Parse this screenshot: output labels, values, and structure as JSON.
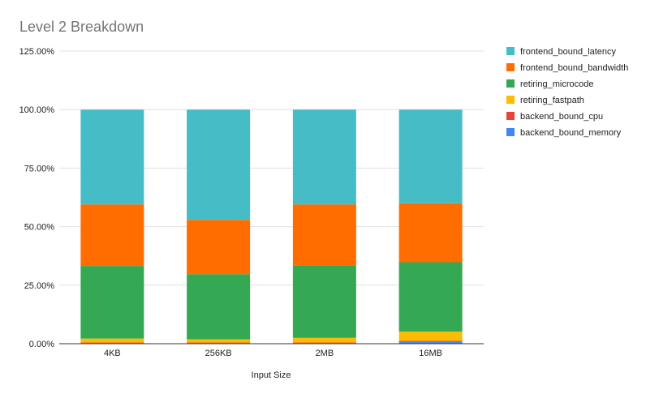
{
  "chart_data": {
    "type": "bar",
    "stacked": true,
    "title": "Level 2 Breakdown",
    "xlabel": "Input Size",
    "ylabel": "",
    "categories": [
      "4KB",
      "256KB",
      "2MB",
      "16MB"
    ],
    "ylim": [
      0,
      125
    ],
    "yticks": [
      0,
      25,
      50,
      75,
      100,
      125
    ],
    "ytick_labels": [
      "0.00%",
      "25.00%",
      "50.00%",
      "75.00%",
      "100.00%",
      "125.00%"
    ],
    "grid": true,
    "legend_position": "right",
    "series": [
      {
        "name": "backend_bound_memory",
        "color": "#4285f4",
        "values": [
          0.3,
          0.3,
          0.3,
          1.0
        ]
      },
      {
        "name": "backend_bound_cpu",
        "color": "#ea4335",
        "values": [
          0.2,
          0.2,
          0.2,
          0.2
        ]
      },
      {
        "name": "retiring_fastpath",
        "color": "#fbbc04",
        "values": [
          1.7,
          1.4,
          2.0,
          4.0
        ]
      },
      {
        "name": "retiring_microcode",
        "color": "#34a853",
        "values": [
          31.0,
          27.8,
          31.0,
          29.6
        ]
      },
      {
        "name": "frontend_bound_bandwidth",
        "color": "#ff6d01",
        "values": [
          26.3,
          23.2,
          26.0,
          25.2
        ]
      },
      {
        "name": "frontend_bound_latency",
        "color": "#46bdc6",
        "values": [
          40.5,
          47.1,
          40.5,
          40.0
        ]
      }
    ],
    "legend_order": [
      "frontend_bound_latency",
      "frontend_bound_bandwidth",
      "retiring_microcode",
      "retiring_fastpath",
      "backend_bound_cpu",
      "backend_bound_memory"
    ]
  }
}
